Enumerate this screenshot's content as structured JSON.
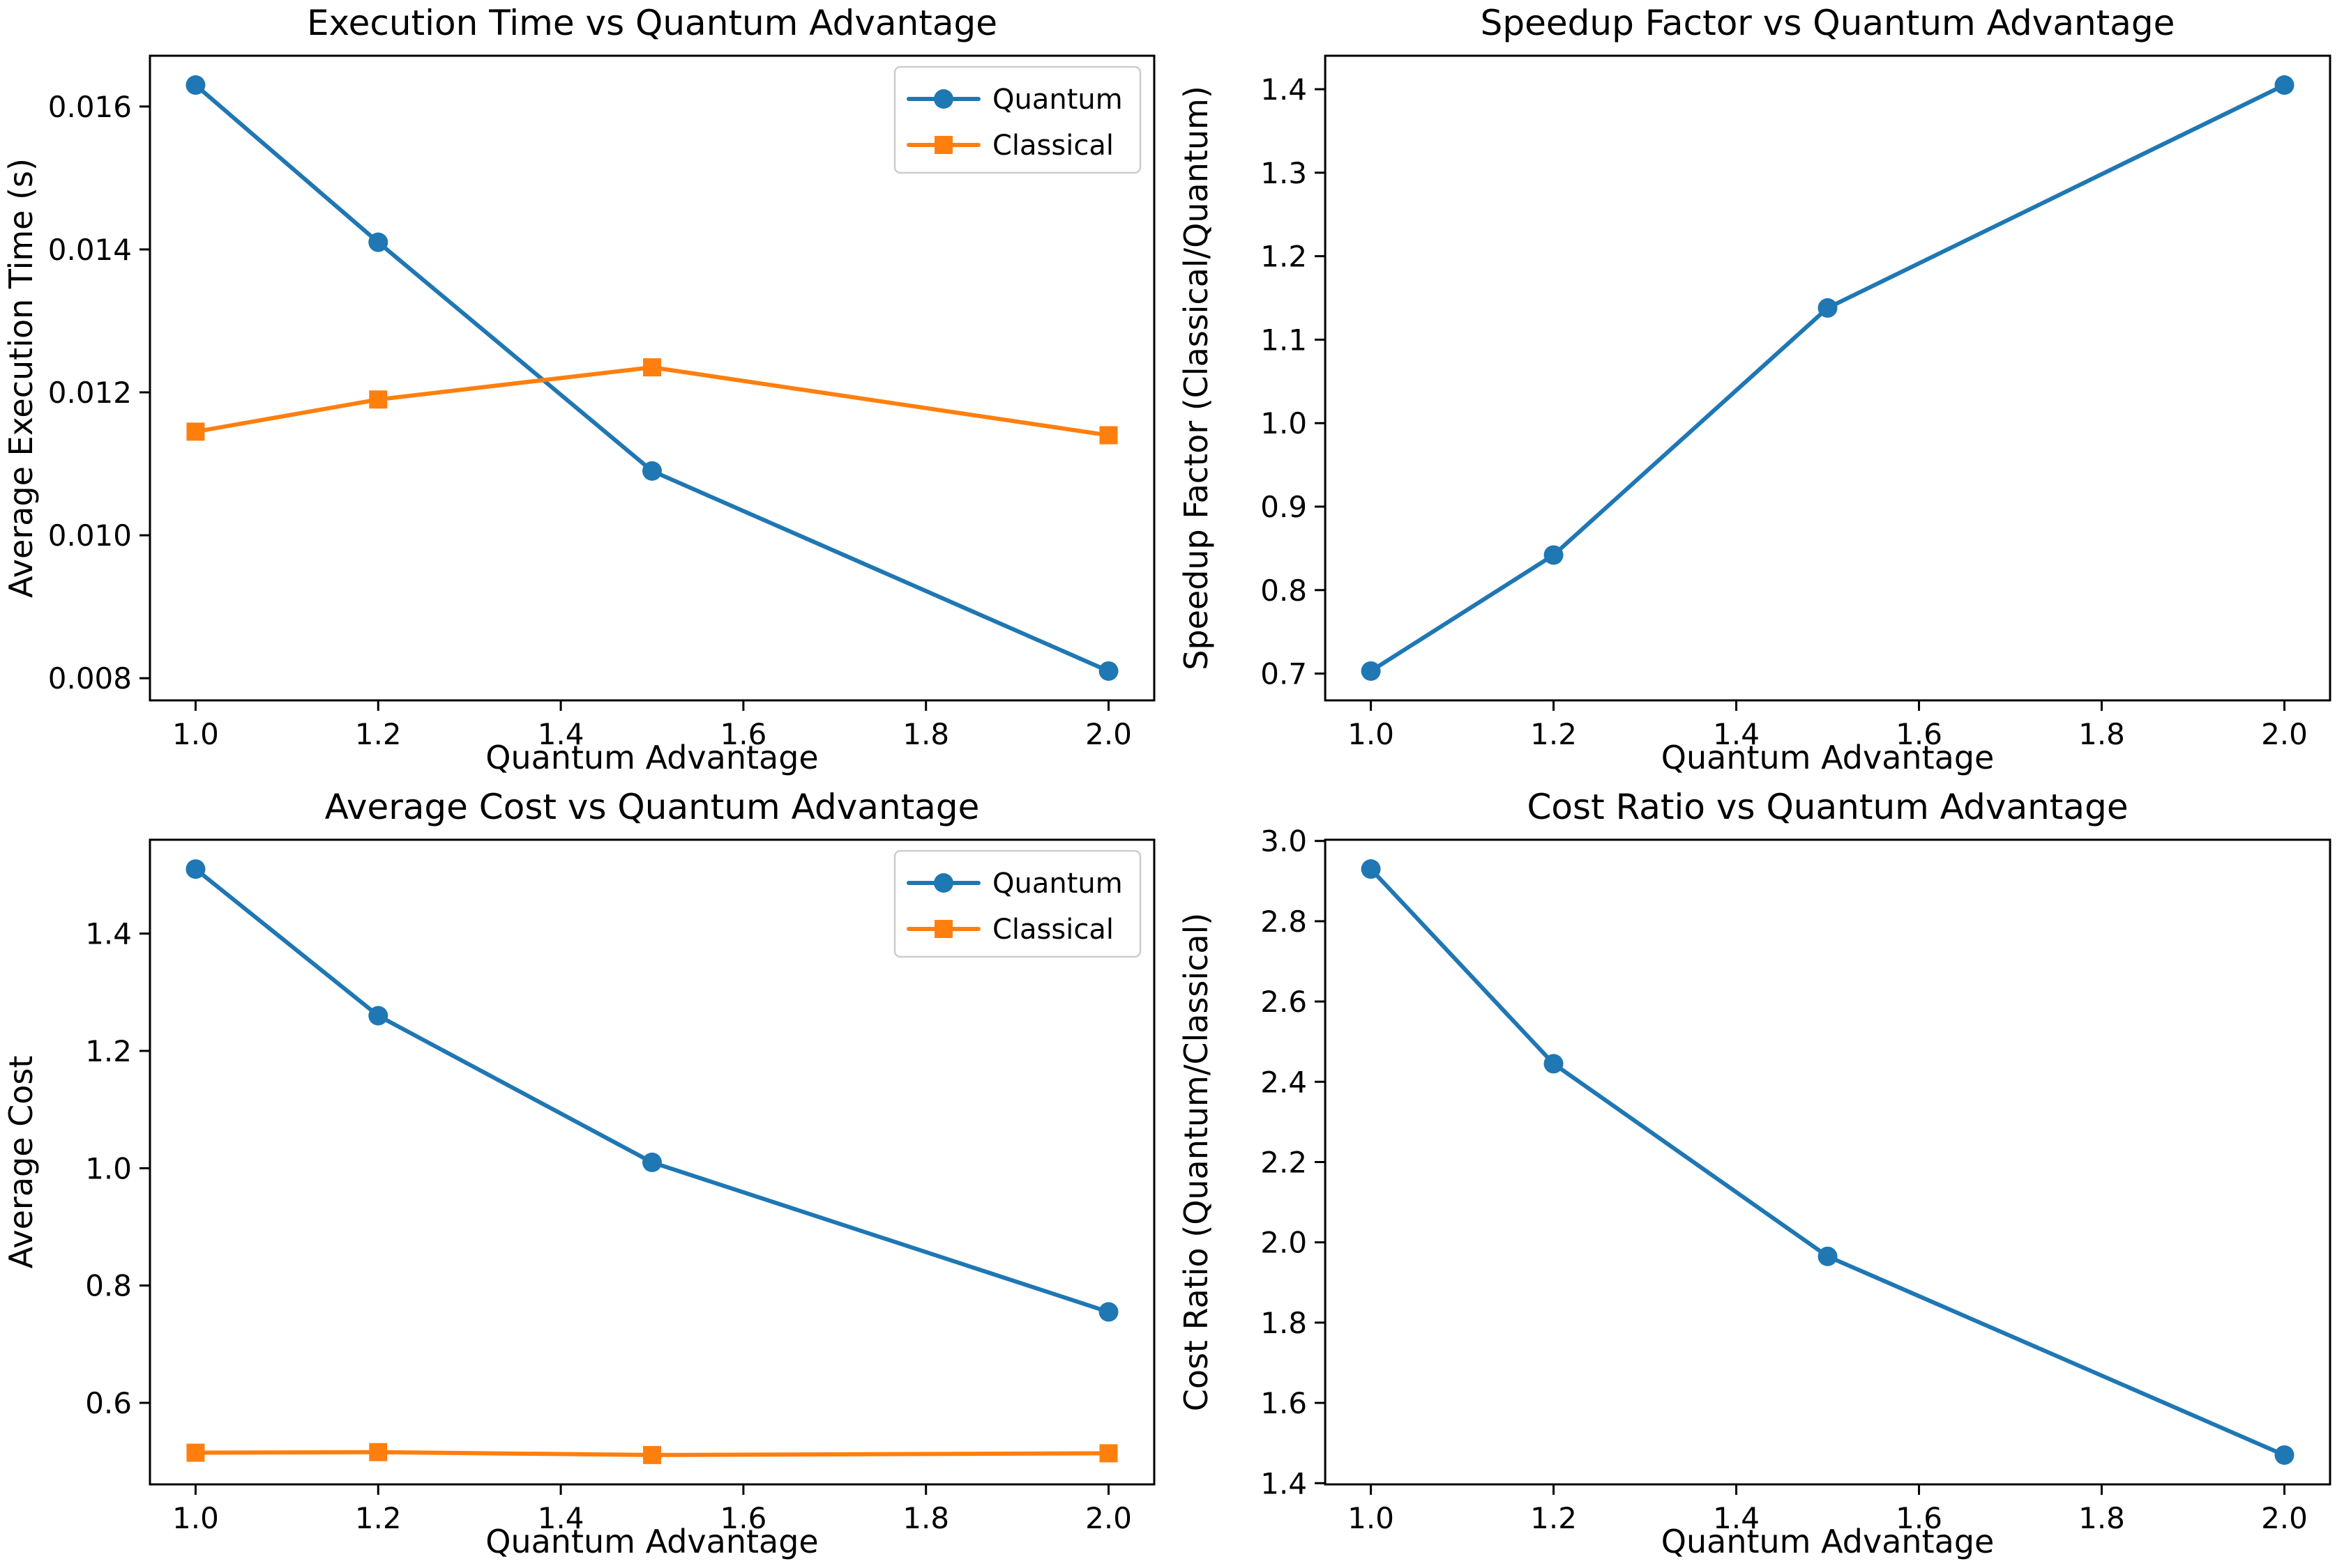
{
  "figure": {
    "background": "#ffffff",
    "text_color": "#000000",
    "axis_color": "#000000",
    "accent_blue": "#1f77b4",
    "accent_orange": "#ff7f0e"
  },
  "chart_data": [
    {
      "id": "execution-time",
      "type": "line",
      "title": "Execution Time vs Quantum Advantage",
      "xlabel": "Quantum Advantage",
      "ylabel": "Average Execution Time (s)",
      "x": [
        1.0,
        1.2,
        1.5,
        2.0
      ],
      "series": [
        {
          "name": "Quantum",
          "color": "#1f77b4",
          "marker": "circle",
          "values": [
            0.0163,
            0.0141,
            0.0109,
            0.0081
          ]
        },
        {
          "name": "Classical",
          "color": "#ff7f0e",
          "marker": "square",
          "values": [
            0.01145,
            0.0119,
            0.01235,
            0.0114
          ]
        }
      ],
      "xlim": [
        0.95,
        2.05
      ],
      "ylim": [
        0.00769,
        0.01671
      ],
      "xticks": {
        "values": [
          1.0,
          1.2,
          1.4,
          1.6,
          1.8,
          2.0
        ],
        "labels": [
          "1.0",
          "1.2",
          "1.4",
          "1.6",
          "1.8",
          "2.0"
        ]
      },
      "yticks": {
        "values": [
          0.008,
          0.01,
          0.012,
          0.014,
          0.016
        ],
        "labels": [
          "0.008",
          "0.010",
          "0.012",
          "0.014",
          "0.016"
        ]
      },
      "legend": {
        "show": true,
        "position": "upper right",
        "entries": [
          "Quantum",
          "Classical"
        ]
      },
      "grid": false
    },
    {
      "id": "speedup-factor",
      "type": "line",
      "title": "Speedup Factor vs Quantum Advantage",
      "xlabel": "Quantum Advantage",
      "ylabel": "Speedup Factor (Classical/Quantum)",
      "x": [
        1.0,
        1.2,
        1.5,
        2.0
      ],
      "series": [
        {
          "color": "#1f77b4",
          "marker": "circle",
          "values": [
            0.703,
            0.842,
            1.138,
            1.405
          ]
        }
      ],
      "xlim": [
        0.95,
        2.05
      ],
      "ylim": [
        0.6679,
        1.4401
      ],
      "xticks": {
        "values": [
          1.0,
          1.2,
          1.4,
          1.6,
          1.8,
          2.0
        ],
        "labels": [
          "1.0",
          "1.2",
          "1.4",
          "1.6",
          "1.8",
          "2.0"
        ]
      },
      "yticks": {
        "values": [
          0.7,
          0.8,
          0.9,
          1.0,
          1.1,
          1.2,
          1.3,
          1.4
        ],
        "labels": [
          "0.7",
          "0.8",
          "0.9",
          "1.0",
          "1.1",
          "1.2",
          "1.3",
          "1.4"
        ]
      },
      "legend": {
        "show": false
      },
      "grid": false
    },
    {
      "id": "average-cost",
      "type": "line",
      "title": "Average Cost vs Quantum Advantage",
      "xlabel": "Quantum Advantage",
      "ylabel": "Average Cost",
      "x": [
        1.0,
        1.2,
        1.5,
        2.0
      ],
      "series": [
        {
          "name": "Quantum",
          "color": "#1f77b4",
          "marker": "circle",
          "values": [
            1.51,
            1.26,
            1.01,
            0.755
          ]
        },
        {
          "name": "Classical",
          "color": "#ff7f0e",
          "marker": "square",
          "values": [
            0.515,
            0.516,
            0.511,
            0.514
          ]
        }
      ],
      "xlim": [
        0.95,
        2.05
      ],
      "ylim": [
        0.461,
        1.56
      ],
      "xticks": {
        "values": [
          1.0,
          1.2,
          1.4,
          1.6,
          1.8,
          2.0
        ],
        "labels": [
          "1.0",
          "1.2",
          "1.4",
          "1.6",
          "1.8",
          "2.0"
        ]
      },
      "yticks": {
        "values": [
          0.6,
          0.8,
          1.0,
          1.2,
          1.4
        ],
        "labels": [
          "0.6",
          "0.8",
          "1.0",
          "1.2",
          "1.4"
        ]
      },
      "legend": {
        "show": true,
        "position": "upper right",
        "entries": [
          "Quantum",
          "Classical"
        ]
      },
      "grid": false
    },
    {
      "id": "cost-ratio",
      "type": "line",
      "title": "Cost Ratio vs Quantum Advantage",
      "xlabel": "Quantum Advantage",
      "ylabel": "Cost Ratio (Quantum/Classical)",
      "x": [
        1.0,
        1.2,
        1.5,
        2.0
      ],
      "series": [
        {
          "color": "#1f77b4",
          "marker": "circle",
          "values": [
            2.93,
            2.445,
            1.965,
            1.47
          ]
        }
      ],
      "xlim": [
        0.95,
        2.05
      ],
      "ylim": [
        1.397,
        3.003
      ],
      "xticks": {
        "values": [
          1.0,
          1.2,
          1.4,
          1.6,
          1.8,
          2.0
        ],
        "labels": [
          "1.0",
          "1.2",
          "1.4",
          "1.6",
          "1.8",
          "2.0"
        ]
      },
      "yticks": {
        "values": [
          1.4,
          1.6,
          1.8,
          2.0,
          2.2,
          2.4,
          2.6,
          2.8,
          3.0
        ],
        "labels": [
          "1.4",
          "1.6",
          "1.8",
          "2.0",
          "2.2",
          "2.4",
          "2.6",
          "2.8",
          "3.0"
        ]
      },
      "legend": {
        "show": false
      },
      "grid": false
    }
  ]
}
